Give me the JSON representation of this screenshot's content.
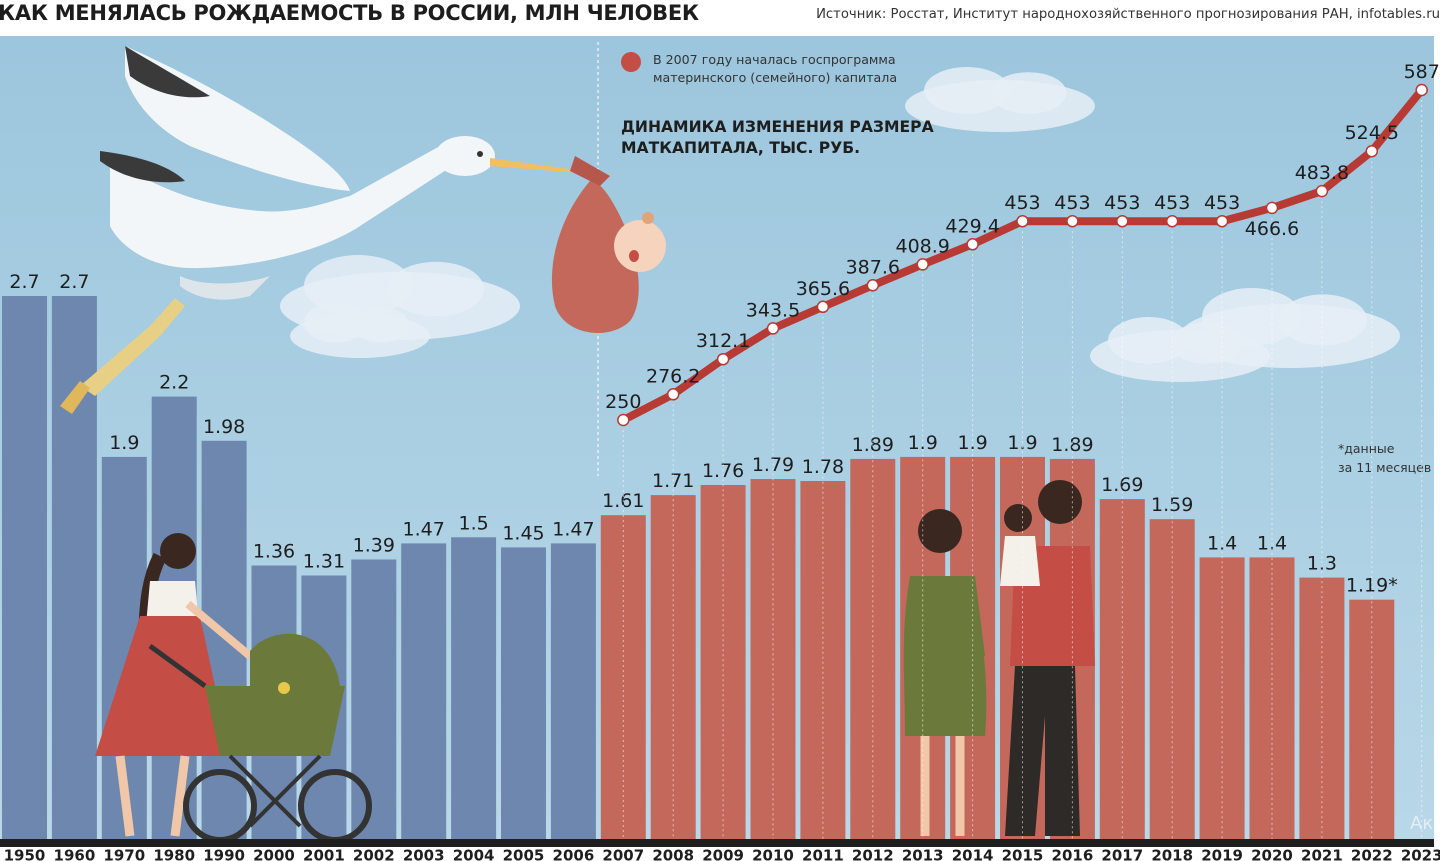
{
  "header": {
    "title": "КАК МЕНЯЛАСЬ РОЖДАЕМОСТЬ В РОССИИ, МЛН ЧЕЛОВЕК",
    "source": "Источник: Росстат, Институт народнохозяйственного прогнозирования РАН, infotables.ru"
  },
  "annotations": {
    "program_note_line1": "В 2007 году началась госпрограмма",
    "program_note_line2": "материнского (семейного) капитала",
    "line_title_line1": "ДИНАМИКА ИЗМЕНЕНИЯ РАЗМЕРА",
    "line_title_line2": "МАТКАПИТАЛА, ТЫС. РУБ.",
    "footnote_line1": "*данные",
    "footnote_line2": "за 11 месяцев",
    "watermark": "Ак"
  },
  "colors": {
    "sky": "#a8cde0",
    "bars_before_2007": "#6e87ae",
    "bars_from_2007": "#c4685c",
    "line": "#b83a34",
    "marker_fill": "#ffffff",
    "note_dot": "#c44d45",
    "cloud": "#e6eff6",
    "baseline": "#1e1e1e",
    "label": "#1e1e1e"
  },
  "chart_data": [
    {
      "type": "bar",
      "categories": [
        "1950",
        "1960",
        "1970",
        "1980",
        "1990",
        "2000",
        "2001",
        "2002",
        "2003",
        "2004",
        "2005",
        "2006",
        "2007",
        "2008",
        "2009",
        "2010",
        "2011",
        "2012",
        "2013",
        "2014",
        "2015",
        "2016",
        "2017",
        "2018",
        "2019",
        "2020",
        "2021",
        "2022",
        "2023"
      ],
      "series": [
        {
          "values": [
            2.7,
            2.7,
            1.9,
            2.2,
            1.98,
            1.36,
            1.31,
            1.39,
            1.47,
            1.5,
            1.45,
            1.47,
            1.61,
            1.71,
            1.76,
            1.79,
            1.78,
            1.89,
            1.9,
            1.9,
            1.9,
            1.89,
            1.69,
            1.59,
            1.4,
            1.4,
            1.3,
            1.19,
            null
          ]
        }
      ],
      "value_labels": [
        "2.7",
        "2.7",
        "1.9",
        "2.2",
        "1.98",
        "1.36",
        "1.31",
        "1.39",
        "1.47",
        "1.5",
        "1.45",
        "1.47",
        "1.61",
        "1.71",
        "1.76",
        "1.79",
        "1.78",
        "1.89",
        "1.9",
        "1.9",
        "1.9",
        "1.89",
        "1.69",
        "1.59",
        "1.4",
        "1.4",
        "1.3",
        "1.19*",
        ""
      ],
      "ylim": [
        0,
        3.2
      ]
    },
    {
      "type": "line",
      "x": [
        "2007",
        "2008",
        "2009",
        "2010",
        "2011",
        "2012",
        "2013",
        "2014",
        "2015",
        "2016",
        "2017",
        "2018",
        "2019",
        "2020",
        "2021",
        "2022",
        "2023"
      ],
      "series": [
        {
          "values": [
            250,
            276.2,
            312.1,
            343.5,
            365.6,
            387.6,
            408.9,
            429.4,
            453,
            453,
            453,
            453,
            453,
            466.6,
            483.8,
            524.5,
            587
          ]
        }
      ],
      "value_labels": [
        "250",
        "276.2",
        "312.1",
        "343.5",
        "365.6",
        "387.6",
        "408.9",
        "429.4",
        "453",
        "453",
        "453",
        "453",
        "453",
        "466.6",
        "483.8",
        "524.5",
        "587"
      ],
      "ylim": [
        220,
        600
      ]
    }
  ]
}
